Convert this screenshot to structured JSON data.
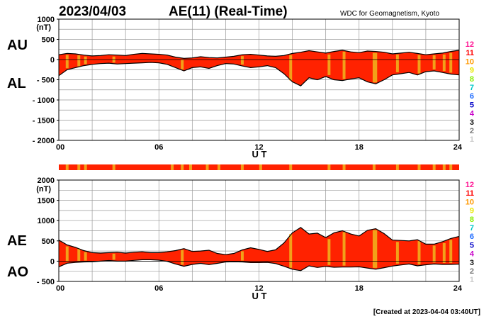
{
  "date": "2023/04/03",
  "index_title": "AE(11) (Real-Time)",
  "source": "WDC for Geomagnetism, Kyoto",
  "created": "[Created at 2023-04-04 03:40UT]",
  "chart_data": [
    {
      "type": "area",
      "id": "au-al",
      "title": "AU / AL",
      "labels": {
        "upper": "AU",
        "lower": "AL"
      },
      "unit": "(nT)",
      "ylim": [
        -2000,
        1000
      ],
      "y_tick_labels": [
        "1000",
        "500",
        "0",
        "- 500",
        "- 1000",
        "- 1500",
        "- 2000"
      ],
      "y_tick_values": [
        1000,
        500,
        0,
        -500,
        -1000,
        -1500,
        -2000
      ],
      "xlabel": "U T",
      "x_tick_labels": [
        "00",
        "06",
        "12",
        "18",
        "24"
      ],
      "x_tick_values": [
        0,
        6,
        12,
        18,
        24
      ],
      "xlim": [
        0,
        24
      ],
      "grid": true,
      "fill_color": "#ff2200",
      "gap_color": "#f2a019",
      "series": [
        {
          "name": "AU",
          "x": [
            0,
            0.5,
            1,
            1.5,
            2,
            2.5,
            3,
            3.5,
            4,
            4.5,
            5,
            5.5,
            6,
            6.5,
            7,
            7.5,
            8,
            8.5,
            9,
            9.5,
            10,
            10.5,
            11,
            11.5,
            12,
            12.5,
            13,
            13.5,
            14,
            14.5,
            15,
            15.5,
            16,
            16.5,
            17,
            17.5,
            18,
            18.5,
            19,
            19.5,
            20,
            20.5,
            21,
            21.5,
            22,
            22.5,
            23,
            23.5,
            24
          ],
          "values": [
            120,
            150,
            140,
            110,
            90,
            100,
            120,
            110,
            100,
            130,
            150,
            140,
            130,
            110,
            60,
            30,
            40,
            70,
            50,
            40,
            60,
            80,
            120,
            130,
            110,
            90,
            80,
            100,
            150,
            180,
            220,
            190,
            160,
            200,
            230,
            190,
            170,
            210,
            200,
            180,
            140,
            160,
            180,
            150,
            120,
            140,
            160,
            200,
            230
          ]
        },
        {
          "name": "AL",
          "x": [
            0,
            0.5,
            1,
            1.5,
            2,
            2.5,
            3,
            3.5,
            4,
            4.5,
            5,
            5.5,
            6,
            6.5,
            7,
            7.5,
            8,
            8.5,
            9,
            9.5,
            10,
            10.5,
            11,
            11.5,
            12,
            12.5,
            13,
            13.5,
            14,
            14.5,
            15,
            15.5,
            16,
            16.5,
            17,
            17.5,
            18,
            18.5,
            19,
            19.5,
            20,
            20.5,
            21,
            21.5,
            22,
            22.5,
            23,
            23.5,
            24
          ],
          "values": [
            -400,
            -250,
            -200,
            -150,
            -120,
            -100,
            -90,
            -110,
            -100,
            -90,
            -80,
            -70,
            -80,
            -120,
            -200,
            -280,
            -200,
            -180,
            -220,
            -150,
            -100,
            -110,
            -160,
            -200,
            -180,
            -150,
            -200,
            -350,
            -550,
            -650,
            -450,
            -500,
            -420,
            -500,
            -520,
            -480,
            -450,
            -550,
            -600,
            -500,
            -380,
            -350,
            -320,
            -380,
            -300,
            -280,
            -320,
            -360,
            -380
          ]
        }
      ],
      "gap_times": [
        0.5,
        1.2,
        1.6,
        3.3,
        7.4,
        11.0,
        13.9,
        16.2,
        17.1,
        18.9,
        19.0,
        20.3,
        21.6,
        22.5,
        23.1,
        23.5
      ]
    },
    {
      "type": "area",
      "id": "ae-ao",
      "title": "AE / AO",
      "labels": {
        "upper": "AE",
        "lower": "AO"
      },
      "unit": "(nT)",
      "ylim": [
        -500,
        2000
      ],
      "y_tick_labels": [
        "2000",
        "1500",
        "1000",
        "500",
        "0",
        "- 500"
      ],
      "y_tick_values": [
        2000,
        1500,
        1000,
        500,
        0,
        -500
      ],
      "xlabel": "U T",
      "x_tick_labels": [
        "00",
        "06",
        "12",
        "18",
        "24"
      ],
      "x_tick_values": [
        0,
        6,
        12,
        18,
        24
      ],
      "xlim": [
        0,
        24
      ],
      "grid": true,
      "fill_color": "#ff2200",
      "gap_color": "#f2a019",
      "series": [
        {
          "name": "AE",
          "x": [
            0,
            0.5,
            1,
            1.5,
            2,
            2.5,
            3,
            3.5,
            4,
            4.5,
            5,
            5.5,
            6,
            6.5,
            7,
            7.5,
            8,
            8.5,
            9,
            9.5,
            10,
            10.5,
            11,
            11.5,
            12,
            12.5,
            13,
            13.5,
            14,
            14.5,
            15,
            15.5,
            16,
            16.5,
            17,
            17.5,
            18,
            18.5,
            19,
            19.5,
            20,
            20.5,
            21,
            21.5,
            22,
            22.5,
            23,
            23.5,
            24
          ],
          "values": [
            520,
            400,
            340,
            260,
            210,
            200,
            210,
            220,
            200,
            220,
            230,
            210,
            210,
            230,
            260,
            310,
            240,
            250,
            270,
            190,
            160,
            190,
            280,
            330,
            290,
            240,
            280,
            450,
            700,
            830,
            670,
            690,
            580,
            700,
            750,
            670,
            620,
            760,
            800,
            680,
            520,
            510,
            500,
            530,
            420,
            420,
            480,
            560,
            610
          ]
        },
        {
          "name": "AO",
          "x": [
            0,
            0.5,
            1,
            1.5,
            2,
            2.5,
            3,
            3.5,
            4,
            4.5,
            5,
            5.5,
            6,
            6.5,
            7,
            7.5,
            8,
            8.5,
            9,
            9.5,
            10,
            10.5,
            11,
            11.5,
            12,
            12.5,
            13,
            13.5,
            14,
            14.5,
            15,
            15.5,
            16,
            16.5,
            17,
            17.5,
            18,
            18.5,
            19,
            19.5,
            20,
            20.5,
            21,
            21.5,
            22,
            22.5,
            23,
            23.5,
            24
          ],
          "values": [
            -140,
            -50,
            -30,
            -20,
            -15,
            0,
            15,
            0,
            0,
            20,
            35,
            35,
            25,
            -5,
            -70,
            -125,
            -80,
            -55,
            -85,
            -55,
            -20,
            -15,
            -20,
            -35,
            -35,
            -30,
            -60,
            -125,
            -200,
            -235,
            -115,
            -155,
            -130,
            -150,
            -145,
            -145,
            -140,
            -170,
            -200,
            -160,
            -120,
            -95,
            -70,
            -115,
            -90,
            -70,
            -80,
            -80,
            -75
          ]
        }
      ],
      "gap_times": [
        0.5,
        1.2,
        1.6,
        3.3,
        7.4,
        11.0,
        13.9,
        16.2,
        17.1,
        18.9,
        19.0,
        20.3,
        21.6,
        22.5,
        23.1,
        23.5
      ]
    }
  ],
  "data_availability_bar": {
    "gap_times": [
      0.5,
      1.2,
      1.6,
      3.3,
      6.8,
      7.4,
      7.9,
      8.9,
      9.6,
      11.0,
      12.1,
      13.9,
      16.2,
      17.1,
      18.9,
      20.3,
      21.6,
      22.5,
      23.1,
      23.5
    ]
  },
  "legend": {
    "labels": [
      "12",
      "11",
      "10",
      "9",
      "8",
      "7",
      "6",
      "5",
      "4",
      "3",
      "2",
      "1"
    ],
    "colors": [
      "#ff1493",
      "#ff0000",
      "#ff9900",
      "#e8e800",
      "#88ee00",
      "#00c8c8",
      "#1e6cff",
      "#0000c8",
      "#c800c8",
      "#111111",
      "#777777",
      "#cccccc"
    ]
  }
}
